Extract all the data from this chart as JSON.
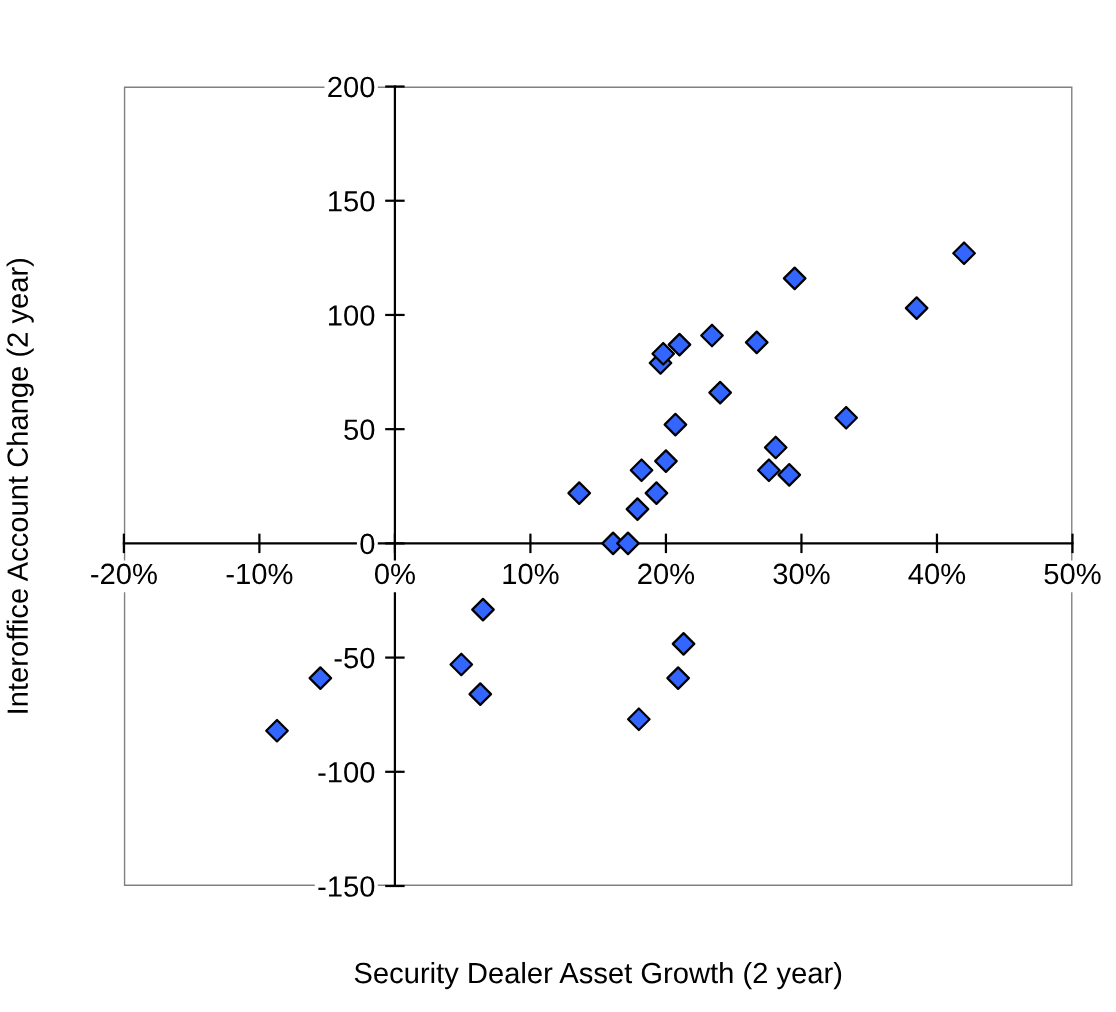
{
  "chart_data": {
    "type": "scatter",
    "xlabel": "Security Dealer Asset Growth (2 year)",
    "ylabel": "Interoffice Account Change (2 year)",
    "x": [
      -8.7,
      -5.5,
      4.9,
      6.3,
      6.5,
      13.6,
      16.1,
      17.2,
      17.9,
      18.2,
      18.0,
      19.3,
      20.0,
      19.6,
      19.8,
      20.7,
      21.0,
      20.9,
      21.3,
      23.4,
      24.0,
      26.7,
      27.6,
      28.1,
      29.1,
      29.5,
      33.3,
      38.5,
      42.0
    ],
    "series": [
      {
        "color": "#3366ff",
        "values": [
          -82,
          -59,
          -53,
          -66,
          -29,
          22,
          0,
          0,
          15,
          32,
          -77,
          22,
          36,
          79,
          83,
          52,
          87,
          -59,
          -44,
          91,
          66,
          88,
          32,
          42,
          30,
          116,
          55,
          103,
          127
        ]
      }
    ],
    "marker": "diamond",
    "xlim": [
      -20,
      50
    ],
    "ylim": [
      -150,
      200
    ],
    "xticks": [
      {
        "value": -20,
        "label": "-20%"
      },
      {
        "value": -10,
        "label": "-10%"
      },
      {
        "value": 0,
        "label": "0%"
      },
      {
        "value": 10,
        "label": "10%"
      },
      {
        "value": 20,
        "label": "20%"
      },
      {
        "value": 30,
        "label": "30%"
      },
      {
        "value": 40,
        "label": "40%"
      },
      {
        "value": 50,
        "label": "50%"
      }
    ],
    "yticks": [
      -150,
      -100,
      -50,
      0,
      50,
      100,
      150,
      200
    ],
    "grid": false,
    "legend": false
  }
}
